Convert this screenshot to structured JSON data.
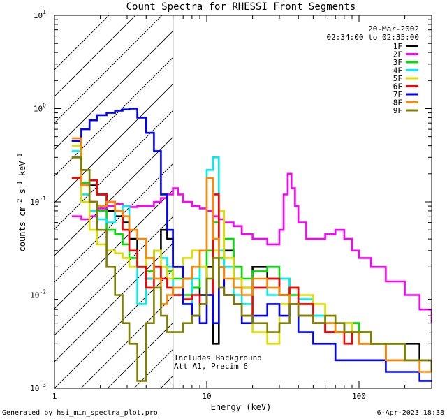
{
  "chart_data": {
    "type": "line",
    "title": "Count Spectra for RHESSI Front Segments",
    "xlabel": "Energy (keV)",
    "ylabel": "counts cm",
    "ylabel_exp1": "-2",
    "ylabel_mid": " s",
    "ylabel_exp2": "-1",
    "ylabel_end": " keV",
    "ylabel_exp3": "-1",
    "xscale": "log",
    "yscale": "log",
    "xlim": [
      1,
      300
    ],
    "ylim": [
      0.001,
      10
    ],
    "x_ticks": [
      {
        "v": 1,
        "label": "1"
      },
      {
        "v": 10,
        "label": "10"
      },
      {
        "v": 100,
        "label": "100"
      }
    ],
    "y_ticks": [
      {
        "v": 0.001,
        "base": "10",
        "exp": "-3"
      },
      {
        "v": 0.01,
        "base": "10",
        "exp": "-2"
      },
      {
        "v": 0.1,
        "base": "10",
        "exp": "-1"
      },
      {
        "v": 1,
        "base": "10",
        "exp": "0"
      },
      {
        "v": 10,
        "base": "10",
        "exp": "1"
      }
    ],
    "excluded_region": [
      1,
      6
    ],
    "date": "20-Mar-2002",
    "time_range": "02:34:00 to 02:35:00",
    "notes": [
      "Includes Background",
      "Att A1, Precim 6"
    ],
    "footer_left": "Generated by hsi_min_spectra_plot.pro",
    "footer_right": "6-Apr-2023 18:38",
    "series": [
      {
        "name": "1F",
        "color": "#000000",
        "x": [
          1.3,
          1.5,
          1.7,
          1.9,
          2.2,
          2.5,
          2.8,
          3.1,
          3.5,
          4.0,
          4.5,
          5.0,
          5.5,
          6.0,
          7,
          8,
          9,
          10,
          11,
          12,
          13,
          15,
          17,
          20,
          25,
          30,
          35,
          40,
          50,
          60,
          70,
          80,
          90,
          100,
          120,
          150,
          200,
          250,
          300
        ],
        "y": [
          0.45,
          0.22,
          0.15,
          0.12,
          0.08,
          0.07,
          0.06,
          0.04,
          0.02,
          0.015,
          0.03,
          0.05,
          0.04,
          0.02,
          0.015,
          0.012,
          0.01,
          0.02,
          0.003,
          0.02,
          0.03,
          0.015,
          0.012,
          0.02,
          0.015,
          0.01,
          0.012,
          0.006,
          0.005,
          0.004,
          0.004,
          0.005,
          0.005,
          0.004,
          0.003,
          0.003,
          0.003,
          0.002,
          0.002
        ]
      },
      {
        "name": "2F",
        "color": "#ff00ff",
        "x": [
          1.3,
          1.5,
          1.7,
          1.9,
          2.2,
          2.5,
          2.8,
          3.1,
          3.5,
          4.0,
          4.5,
          5.0,
          5.5,
          6.0,
          6.5,
          7,
          8,
          9,
          10,
          11,
          12,
          13,
          15,
          17,
          20,
          25,
          30,
          32,
          34,
          36,
          38,
          40,
          45,
          50,
          60,
          70,
          80,
          90,
          100,
          120,
          150,
          200,
          250,
          300
        ],
        "y": [
          0.07,
          0.065,
          0.07,
          0.085,
          0.09,
          0.095,
          0.09,
          0.088,
          0.09,
          0.09,
          0.1,
          0.11,
          0.12,
          0.14,
          0.12,
          0.1,
          0.09,
          0.085,
          0.08,
          0.07,
          0.065,
          0.06,
          0.055,
          0.045,
          0.04,
          0.035,
          0.05,
          0.12,
          0.2,
          0.14,
          0.09,
          0.06,
          0.04,
          0.04,
          0.045,
          0.05,
          0.04,
          0.03,
          0.025,
          0.02,
          0.014,
          0.01,
          0.007,
          0.005
        ]
      },
      {
        "name": "3F",
        "color": "#00dd00",
        "x": [
          1.3,
          1.5,
          1.7,
          1.9,
          2.2,
          2.5,
          2.8,
          3.1,
          3.5,
          4.0,
          4.5,
          5.0,
          5.5,
          6.0,
          7,
          8,
          9,
          10,
          11,
          12,
          13,
          15,
          17,
          20,
          25,
          30,
          35,
          40,
          50,
          60,
          70,
          80,
          90,
          100,
          120,
          150,
          200,
          250,
          300
        ],
        "y": [
          0.3,
          0.16,
          0.1,
          0.08,
          0.05,
          0.045,
          0.035,
          0.025,
          0.02,
          0.018,
          0.015,
          0.02,
          0.018,
          0.015,
          0.01,
          0.012,
          0.02,
          0.03,
          0.06,
          0.025,
          0.04,
          0.02,
          0.015,
          0.018,
          0.02,
          0.015,
          0.01,
          0.008,
          0.006,
          0.005,
          0.005,
          0.004,
          0.005,
          0.004,
          0.003,
          0.003,
          0.002,
          0.002,
          0.002
        ]
      },
      {
        "name": "4F",
        "color": "#00eeee",
        "x": [
          1.3,
          1.5,
          1.7,
          1.9,
          2.2,
          2.5,
          2.8,
          3.1,
          3.5,
          4.0,
          4.5,
          5.0,
          5.5,
          6.0,
          7,
          8,
          9,
          10,
          11,
          12,
          13,
          15,
          17,
          20,
          25,
          30,
          35,
          40,
          50,
          60,
          70,
          80,
          90,
          100,
          120,
          150,
          200,
          250,
          300
        ],
        "y": [
          0.35,
          0.12,
          0.08,
          0.065,
          0.06,
          0.08,
          0.09,
          0.03,
          0.008,
          0.015,
          0.03,
          0.025,
          0.02,
          0.01,
          0.008,
          0.015,
          0.03,
          0.22,
          0.3,
          0.03,
          0.02,
          0.01,
          0.008,
          0.012,
          0.01,
          0.015,
          0.012,
          0.009,
          0.006,
          0.005,
          0.004,
          0.004,
          0.004,
          0.003,
          0.003,
          0.002,
          0.002,
          0.002,
          0.002
        ]
      },
      {
        "name": "5F",
        "color": "#dddd00",
        "x": [
          1.3,
          1.5,
          1.7,
          1.9,
          2.2,
          2.5,
          2.8,
          3.1,
          3.5,
          4.0,
          4.5,
          5.0,
          5.5,
          6.0,
          7,
          8,
          9,
          10,
          11,
          12,
          13,
          15,
          17,
          20,
          25,
          30,
          35,
          40,
          50,
          60,
          70,
          80,
          90,
          100,
          120,
          150,
          200,
          250,
          300
        ],
        "y": [
          0.4,
          0.1,
          0.05,
          0.035,
          0.03,
          0.028,
          0.025,
          0.02,
          0.02,
          0.025,
          0.03,
          0.02,
          0.015,
          0.02,
          0.025,
          0.03,
          0.02,
          0.015,
          0.03,
          0.08,
          0.025,
          0.015,
          0.012,
          0.004,
          0.003,
          0.008,
          0.012,
          0.01,
          0.008,
          0.006,
          0.005,
          0.005,
          0.004,
          0.004,
          0.003,
          0.003,
          0.002,
          0.002,
          0.0015
        ]
      },
      {
        "name": "6F",
        "color": "#ff0000",
        "x": [
          1.3,
          1.5,
          1.7,
          1.9,
          2.2,
          2.5,
          2.8,
          3.1,
          3.5,
          4.0,
          4.5,
          5.0,
          5.5,
          6.0,
          7,
          8,
          9,
          10,
          11,
          12,
          13,
          15,
          17,
          20,
          25,
          30,
          35,
          40,
          50,
          60,
          70,
          80,
          90,
          100,
          120,
          150,
          200,
          250,
          300
        ],
        "y": [
          0.18,
          0.15,
          0.17,
          0.12,
          0.1,
          0.08,
          0.05,
          0.03,
          0.02,
          0.012,
          0.02,
          0.015,
          0.012,
          0.01,
          0.009,
          0.01,
          0.008,
          0.01,
          0.12,
          0.012,
          0.01,
          0.008,
          0.006,
          0.012,
          0.015,
          0.01,
          0.012,
          0.008,
          0.005,
          0.004,
          0.004,
          0.003,
          0.004,
          0.003,
          0.003,
          0.002,
          0.002,
          0.002,
          0.0015
        ]
      },
      {
        "name": "7F",
        "color": "#0000ff",
        "x": [
          1.3,
          1.5,
          1.7,
          1.9,
          2.2,
          2.5,
          2.8,
          3.1,
          3.5,
          4.0,
          4.5,
          5.0,
          5.5,
          6.0,
          7,
          8,
          9,
          10,
          11,
          12,
          13,
          15,
          17,
          20,
          25,
          30,
          35,
          40,
          50,
          60,
          70,
          80,
          90,
          100,
          120,
          150,
          200,
          250,
          300
        ],
        "y": [
          0.45,
          0.6,
          0.75,
          0.85,
          0.9,
          0.95,
          0.98,
          1.0,
          0.8,
          0.55,
          0.35,
          0.12,
          0.05,
          0.02,
          0.008,
          0.006,
          0.005,
          0.01,
          0.005,
          0.02,
          0.01,
          0.008,
          0.005,
          0.006,
          0.008,
          0.006,
          0.008,
          0.004,
          0.003,
          0.003,
          0.002,
          0.002,
          0.002,
          0.002,
          0.002,
          0.0015,
          0.0015,
          0.0012,
          0.0012
        ]
      },
      {
        "name": "8F",
        "color": "#ff8800",
        "x": [
          1.3,
          1.5,
          1.7,
          1.9,
          2.2,
          2.5,
          2.8,
          3.1,
          3.5,
          4.0,
          4.5,
          5.0,
          5.5,
          6.0,
          7,
          8,
          9,
          10,
          11,
          12,
          13,
          15,
          17,
          20,
          25,
          30,
          35,
          40,
          50,
          60,
          70,
          80,
          90,
          100,
          120,
          150,
          200,
          250,
          300
        ],
        "y": [
          0.48,
          0.15,
          0.1,
          0.09,
          0.1,
          0.08,
          0.07,
          0.05,
          0.04,
          0.025,
          0.015,
          0.008,
          0.01,
          0.012,
          0.015,
          0.02,
          0.03,
          0.18,
          0.04,
          0.02,
          0.015,
          0.012,
          0.01,
          0.015,
          0.012,
          0.01,
          0.008,
          0.006,
          0.005,
          0.005,
          0.004,
          0.004,
          0.004,
          0.003,
          0.003,
          0.002,
          0.002,
          0.0015,
          0.0015
        ]
      },
      {
        "name": "9F",
        "color": "#808000",
        "x": [
          1.3,
          1.5,
          1.7,
          1.9,
          2.2,
          2.5,
          2.8,
          3.1,
          3.5,
          4.0,
          4.5,
          5.0,
          5.5,
          6.0,
          7,
          8,
          9,
          10,
          11,
          12,
          13,
          15,
          17,
          20,
          25,
          30,
          35,
          40,
          50,
          60,
          70,
          80,
          90,
          100,
          120,
          150,
          200,
          250,
          300
        ],
        "y": [
          0.3,
          0.22,
          0.1,
          0.05,
          0.02,
          0.01,
          0.005,
          0.003,
          0.0012,
          0.005,
          0.012,
          0.006,
          0.004,
          0.004,
          0.005,
          0.006,
          0.008,
          0.015,
          0.025,
          0.012,
          0.01,
          0.008,
          0.006,
          0.005,
          0.004,
          0.005,
          0.008,
          0.006,
          0.005,
          0.006,
          0.005,
          0.004,
          0.004,
          0.004,
          0.003,
          0.003,
          0.002,
          0.002,
          0.0015
        ]
      }
    ]
  }
}
